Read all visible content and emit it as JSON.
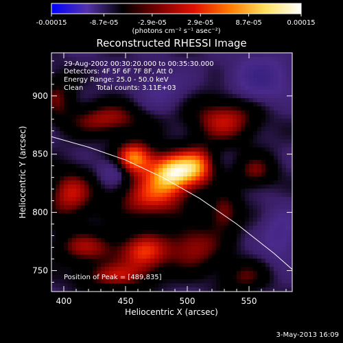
{
  "chart_data": {
    "type": "heatmap",
    "title": "Reconstructed RHESSI Image",
    "xlabel": "Heliocentric X (arcsec)",
    "ylabel": "Heliocentric Y (arcsec)",
    "xlim": [
      390,
      585
    ],
    "ylim": [
      732,
      937
    ],
    "x_ticks": [
      400,
      450,
      500,
      550
    ],
    "y_ticks": [
      750,
      800,
      850,
      900
    ],
    "colorbar": {
      "range": [
        -0.00015,
        0.00015
      ],
      "ticks": [
        -0.00015,
        -8.7e-05,
        -2.9e-05,
        2.9e-05,
        8.7e-05,
        0.00015
      ],
      "tick_labels": [
        "-0.00015",
        "-8.7e-05",
        "-2.9e-05",
        "2.9e-05",
        "8.7e-05",
        "0.00015"
      ],
      "unit_label": "(photons cm⁻² s⁻¹ asec⁻²)",
      "colors": [
        "#0000ff",
        "#5533aa",
        "#000000",
        "#7a0000",
        "#e01000",
        "#ff7a00",
        "#ffe060",
        "#ffffff"
      ]
    },
    "annotations": [
      "29-Aug-2002 00:30:20.000 to 00:35:30.000",
      "Detectors: 4F 5F 6F 7F 8F, Att 0",
      "Energy Range: 25.0 - 50.0 keV",
      "Clean      Total counts: 3.11E+03"
    ],
    "peak_label": "Position of Peak = [489,835]",
    "peak": [
      489,
      835
    ],
    "limb_curve": {
      "x": [
        390,
        420,
        450,
        480,
        510,
        540,
        570,
        585
      ],
      "y": [
        865,
        856,
        845,
        830,
        812,
        790,
        765,
        751
      ]
    },
    "blobs": [
      {
        "x": 489,
        "y": 835,
        "sx": 14,
        "sy": 12,
        "a": 1.0
      },
      {
        "x": 457,
        "y": 847,
        "sx": 11,
        "sy": 10,
        "a": 0.8
      },
      {
        "x": 470,
        "y": 812,
        "sx": 20,
        "sy": 14,
        "a": 0.6
      },
      {
        "x": 510,
        "y": 840,
        "sx": 10,
        "sy": 12,
        "a": 0.55
      },
      {
        "x": 435,
        "y": 880,
        "sx": 22,
        "sy": 10,
        "a": 0.5
      },
      {
        "x": 405,
        "y": 815,
        "sx": 14,
        "sy": 16,
        "a": 0.55
      },
      {
        "x": 420,
        "y": 770,
        "sx": 20,
        "sy": 10,
        "a": 0.45
      },
      {
        "x": 465,
        "y": 765,
        "sx": 14,
        "sy": 12,
        "a": 0.6
      },
      {
        "x": 505,
        "y": 770,
        "sx": 16,
        "sy": 14,
        "a": 0.5
      },
      {
        "x": 530,
        "y": 800,
        "sx": 10,
        "sy": 12,
        "a": 0.45
      },
      {
        "x": 530,
        "y": 880,
        "sx": 20,
        "sy": 14,
        "a": 0.55
      },
      {
        "x": 555,
        "y": 835,
        "sx": 12,
        "sy": 10,
        "a": 0.4
      },
      {
        "x": 440,
        "y": 745,
        "sx": 22,
        "sy": 8,
        "a": 0.45
      },
      {
        "x": 545,
        "y": 745,
        "sx": 14,
        "sy": 10,
        "a": 0.35
      },
      {
        "x": 395,
        "y": 900,
        "sx": 10,
        "sy": 14,
        "a": 0.35
      },
      {
        "x": 440,
        "y": 835,
        "sx": 8,
        "sy": 8,
        "a": -0.35
      },
      {
        "x": 560,
        "y": 915,
        "sx": 16,
        "sy": 14,
        "a": -0.5
      },
      {
        "x": 480,
        "y": 905,
        "sx": 14,
        "sy": 12,
        "a": -0.25
      },
      {
        "x": 575,
        "y": 780,
        "sx": 10,
        "sy": 16,
        "a": -0.35
      }
    ]
  },
  "footer": {
    "date": "3-May-2013 16:09"
  }
}
